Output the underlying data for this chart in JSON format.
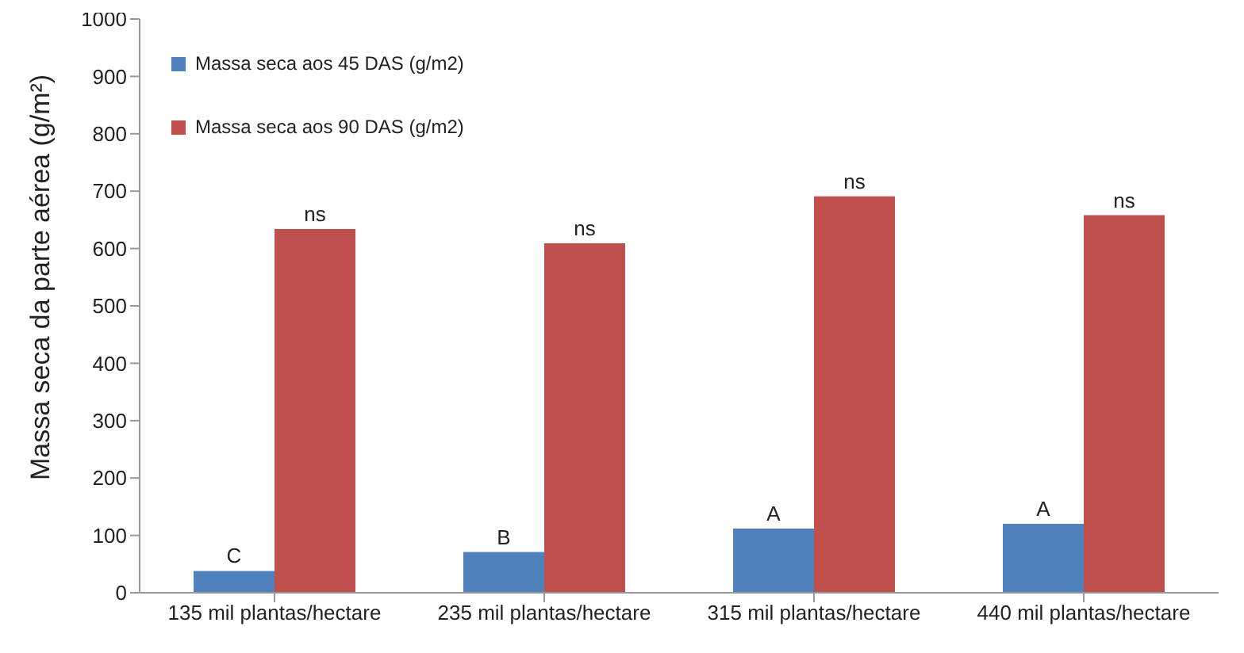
{
  "chart_data": {
    "type": "bar",
    "ylabel": "Massa seca da parte aérea (g/m²)",
    "categories": [
      "135 mil plantas/hectare",
      "235 mil plantas/hectare",
      "315 mil plantas/hectare",
      "440 mil plantas/hectare"
    ],
    "series": [
      {
        "name": "Massa seca aos 45 DAS (g/m2)",
        "color": "#4f81bd",
        "values": [
          38,
          71,
          112,
          120
        ]
      },
      {
        "name": "Massa seca aos 90 DAS (g/m2)",
        "color": "#c0504d",
        "values": [
          634,
          609,
          691,
          658
        ]
      }
    ],
    "ylim": [
      0,
      1000
    ],
    "yticks": [
      0,
      100,
      200,
      300,
      400,
      500,
      600,
      700,
      800,
      900,
      1000
    ],
    "grid": false,
    "legend": "top left",
    "annotations": [
      {
        "text": "C",
        "x": "135 mil plantas/hectare",
        "y": 38
      },
      {
        "text": "B",
        "x": "235 mil plantas/hectare",
        "y": 71
      },
      {
        "text": "A",
        "x": "315 mil plantas/hectare",
        "y": 112
      },
      {
        "text": "A",
        "x": "440 mil plantas/hectare",
        "y": 120
      },
      {
        "text": "ns",
        "x": "135 mil plantas/hectare",
        "y": 634
      },
      {
        "text": "ns",
        "x": "235 mil plantas/hectare",
        "y": 609
      },
      {
        "text": "ns",
        "x": "315 mil plantas/hectare",
        "y": 691
      },
      {
        "text": "ns",
        "x": "440 mil plantas/hectare",
        "y": 658
      }
    ]
  }
}
